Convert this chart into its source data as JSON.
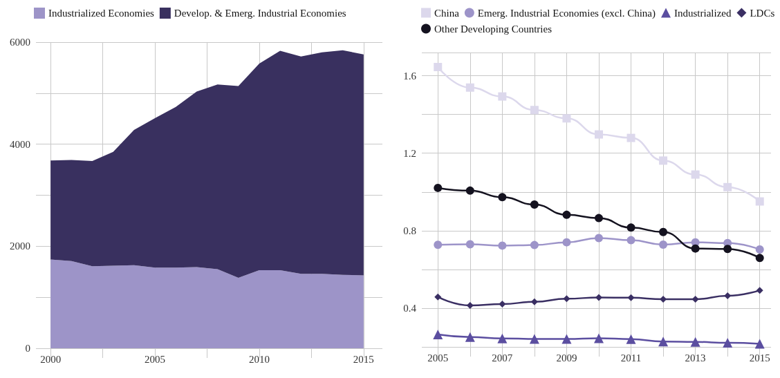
{
  "chart_data": [
    {
      "type": "area",
      "stacked": true,
      "legend": "top left",
      "grid": true,
      "x": [
        2000,
        2001,
        2002,
        2003,
        2004,
        2005,
        2006,
        2007,
        2008,
        2009,
        2010,
        2011,
        2012,
        2013,
        2014,
        2015
      ],
      "xlim": [
        1999.3,
        2015.9
      ],
      "xticks": [
        2000,
        {
          "value": 2002.5,
          "label": null
        },
        2005,
        {
          "value": 2007.5,
          "label": null
        },
        2010,
        {
          "value": 2012.5,
          "label": null
        },
        2015
      ],
      "ylim": [
        0,
        6000
      ],
      "yticks": [
        0,
        {
          "value": 1000,
          "label": null
        },
        2000,
        {
          "value": 3000,
          "label": null
        },
        4000,
        {
          "value": 5000,
          "label": null
        },
        6000
      ],
      "series": [
        {
          "name": "Industrialized Economies",
          "color": "#9d94c8",
          "values": [
            1740,
            1710,
            1610,
            1620,
            1630,
            1580,
            1580,
            1590,
            1550,
            1380,
            1530,
            1530,
            1460,
            1460,
            1440,
            1430
          ]
        },
        {
          "name": "Develop. & Emerg. Industrial Economies",
          "color": "#39305f",
          "values": [
            1940,
            1980,
            2060,
            2230,
            2650,
            2930,
            3150,
            3440,
            3620,
            3760,
            4050,
            4300,
            4260,
            4340,
            4400,
            4330
          ]
        }
      ]
    },
    {
      "type": "line",
      "legend": "top left",
      "grid": true,
      "x": [
        2005,
        2006,
        2007,
        2008,
        2009,
        2010,
        2011,
        2012,
        2013,
        2014,
        2015
      ],
      "xlim": [
        2004.5,
        2015.35
      ],
      "xticks": [
        2005,
        {
          "value": 2006,
          "label": null
        },
        2007,
        {
          "value": 2008,
          "label": null
        },
        2009,
        {
          "value": 2010,
          "label": null
        },
        2011,
        {
          "value": 2012,
          "label": null
        },
        2013,
        {
          "value": 2014,
          "label": null
        },
        2015
      ],
      "ylim": [
        0.2,
        1.72
      ],
      "yticks": [
        {
          "value": 0.2,
          "label": null
        },
        0.4,
        {
          "value": 0.6,
          "label": null
        },
        0.8,
        {
          "value": 1.0,
          "label": null
        },
        1.2,
        {
          "value": 1.4,
          "label": null
        },
        1.6
      ],
      "series": [
        {
          "name": "China",
          "color": "#dcd8ec",
          "marker": "square",
          "values": [
            1.645,
            1.539,
            1.493,
            1.423,
            1.38,
            1.297,
            1.279,
            1.162,
            1.09,
            1.025,
            0.951
          ]
        },
        {
          "name": "Emerg. Industrial Economies (excl. China)",
          "color": "#9d94c9",
          "marker": "circle",
          "values": [
            0.727,
            0.73,
            0.723,
            0.726,
            0.74,
            0.762,
            0.751,
            0.728,
            0.74,
            0.736,
            0.703
          ]
        },
        {
          "name": "Industrialized",
          "color": "#5b4ea0",
          "marker": "triangle",
          "values": [
            0.264,
            0.251,
            0.244,
            0.241,
            0.241,
            0.245,
            0.24,
            0.228,
            0.226,
            0.221,
            0.216
          ]
        },
        {
          "name": "LDCs",
          "color": "#3a2f63",
          "marker": "diamond",
          "values": [
            0.458,
            0.414,
            0.421,
            0.433,
            0.449,
            0.455,
            0.454,
            0.446,
            0.446,
            0.464,
            0.492
          ]
        },
        {
          "name": "Other Developing Countries",
          "color": "#14121f",
          "marker": "circle",
          "values": [
            1.021,
            1.007,
            0.973,
            0.935,
            0.882,
            0.865,
            0.816,
            0.793,
            0.708,
            0.706,
            0.659
          ]
        }
      ]
    }
  ]
}
